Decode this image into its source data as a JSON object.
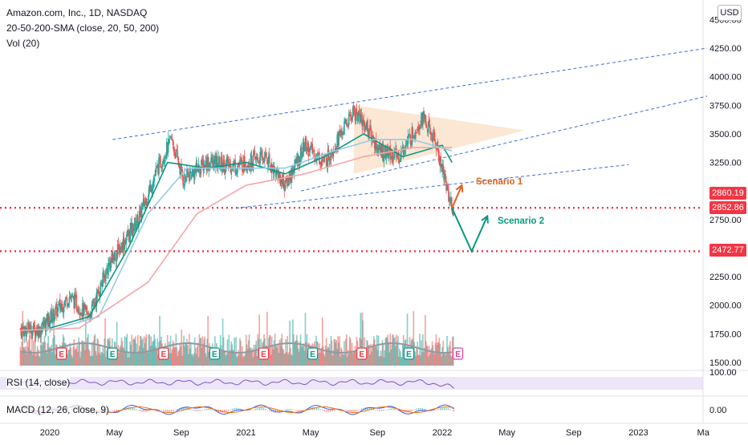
{
  "legend": {
    "title": "Amazon.com, Inc., 1D, NASDAQ",
    "sma": "20-50-200-SMA (close, 20, 50, 200)",
    "vol": "Vol (20)"
  },
  "currency_button": "USD",
  "price_tags": [
    {
      "label": "2860.19",
      "color": "#f23645"
    },
    {
      "label": "2852.86",
      "color": "#f23645"
    },
    {
      "label": "2472.77",
      "color": "#f23645"
    }
  ],
  "annotations": {
    "scenario1": {
      "label": "Scenario 1",
      "color": "#e0601e"
    },
    "scenario2": {
      "label": "Scenario 2",
      "color": "#089981"
    }
  },
  "panes": {
    "rsi_label": "RSI (14, close)",
    "rsi_axis": [
      "100.00"
    ],
    "macd_label": "MACD (12, 26, close, 9)",
    "macd_axis": [
      "0.00"
    ]
  },
  "chart_data": {
    "type": "candlestick",
    "title": "Amazon.com, Inc., 1D, NASDAQ",
    "y_axis_ticks": [
      "4500.00",
      "4250.00",
      "4000.00",
      "3750.00",
      "3500.00",
      "3250.00",
      "2750.00",
      "2250.00",
      "2000.00",
      "1750.00",
      "1500.00"
    ],
    "x_axis_ticks": [
      "2020",
      "May",
      "Sep",
      "2021",
      "May",
      "Sep",
      "2022",
      "May",
      "Sep",
      "2023",
      "Ma"
    ],
    "ylim": [
      1450,
      4560
    ],
    "horizontal_levels": [
      2860.19,
      2852.86,
      2472.77
    ],
    "price_path": [
      {
        "x": 2019.95,
        "y": 1790
      },
      {
        "x": 2020.1,
        "y": 2080
      },
      {
        "x": 2020.2,
        "y": 1900
      },
      {
        "x": 2020.3,
        "y": 2350
      },
      {
        "x": 2020.45,
        "y": 2750
      },
      {
        "x": 2020.55,
        "y": 3200
      },
      {
        "x": 2020.62,
        "y": 3450
      },
      {
        "x": 2020.68,
        "y": 3100
      },
      {
        "x": 2020.8,
        "y": 3250
      },
      {
        "x": 2020.95,
        "y": 3220
      },
      {
        "x": 2021.1,
        "y": 3300
      },
      {
        "x": 2021.2,
        "y": 3050
      },
      {
        "x": 2021.3,
        "y": 3400
      },
      {
        "x": 2021.4,
        "y": 3250
      },
      {
        "x": 2021.55,
        "y": 3700
      },
      {
        "x": 2021.62,
        "y": 3550
      },
      {
        "x": 2021.68,
        "y": 3350
      },
      {
        "x": 2021.78,
        "y": 3300
      },
      {
        "x": 2021.9,
        "y": 3650
      },
      {
        "x": 2021.97,
        "y": 3400
      },
      {
        "x": 2022.05,
        "y": 2850
      }
    ],
    "sma_lines": [
      {
        "name": "SMA 20",
        "color": "#089981",
        "points": [
          [
            2020.0,
            1800
          ],
          [
            2020.2,
            1900
          ],
          [
            2020.4,
            2500
          ],
          [
            2020.6,
            3250
          ],
          [
            2020.8,
            3200
          ],
          [
            2021.0,
            3250
          ],
          [
            2021.2,
            3150
          ],
          [
            2021.4,
            3300
          ],
          [
            2021.6,
            3500
          ],
          [
            2021.8,
            3300
          ],
          [
            2022.0,
            3400
          ],
          [
            2022.05,
            3250
          ]
        ]
      },
      {
        "name": "SMA 50",
        "color": "#90cce8",
        "points": [
          [
            2020.0,
            1780
          ],
          [
            2020.25,
            1900
          ],
          [
            2020.5,
            2800
          ],
          [
            2020.7,
            3200
          ],
          [
            2021.0,
            3200
          ],
          [
            2021.2,
            3200
          ],
          [
            2021.45,
            3350
          ],
          [
            2021.65,
            3450
          ],
          [
            2021.85,
            3450
          ],
          [
            2022.05,
            3350
          ]
        ]
      },
      {
        "name": "SMA 200",
        "color": "#f4a6a6",
        "points": [
          [
            2019.85,
            1780
          ],
          [
            2020.15,
            1800
          ],
          [
            2020.5,
            2200
          ],
          [
            2020.75,
            2800
          ],
          [
            2021.0,
            3050
          ],
          [
            2021.3,
            3150
          ],
          [
            2021.6,
            3300
          ],
          [
            2021.85,
            3380
          ],
          [
            2022.05,
            3380
          ]
        ]
      }
    ],
    "trend_lines": [
      {
        "from": [
          2020.32,
          3450
        ],
        "to": [
          2023.35,
          4250
        ]
      },
      {
        "from": [
          2021.28,
          3000
        ],
        "to": [
          2023.35,
          3830
        ]
      },
      {
        "from": [
          2020.95,
          2850
        ],
        "to": [
          2022.95,
          3230
        ]
      }
    ],
    "shaded_triangle": [
      [
        2021.55,
        3750
      ],
      [
        2022.42,
        3530
      ],
      [
        2021.55,
        3150
      ]
    ],
    "scenario1": [
      [
        2022.05,
        2850
      ],
      [
        2022.1,
        3050
      ]
    ],
    "scenario2": [
      [
        2022.05,
        2850
      ],
      [
        2022.15,
        2472
      ],
      [
        2022.23,
        2780
      ]
    ],
    "earnings_markers": [
      2020.06,
      2020.32,
      2020.58,
      2020.84,
      2021.09,
      2021.34,
      2021.59,
      2021.83,
      2022.08
    ],
    "rsi": {
      "ylim": [
        0,
        100
      ],
      "band": [
        30,
        70
      ]
    },
    "macd": {
      "zero": 0
    }
  }
}
